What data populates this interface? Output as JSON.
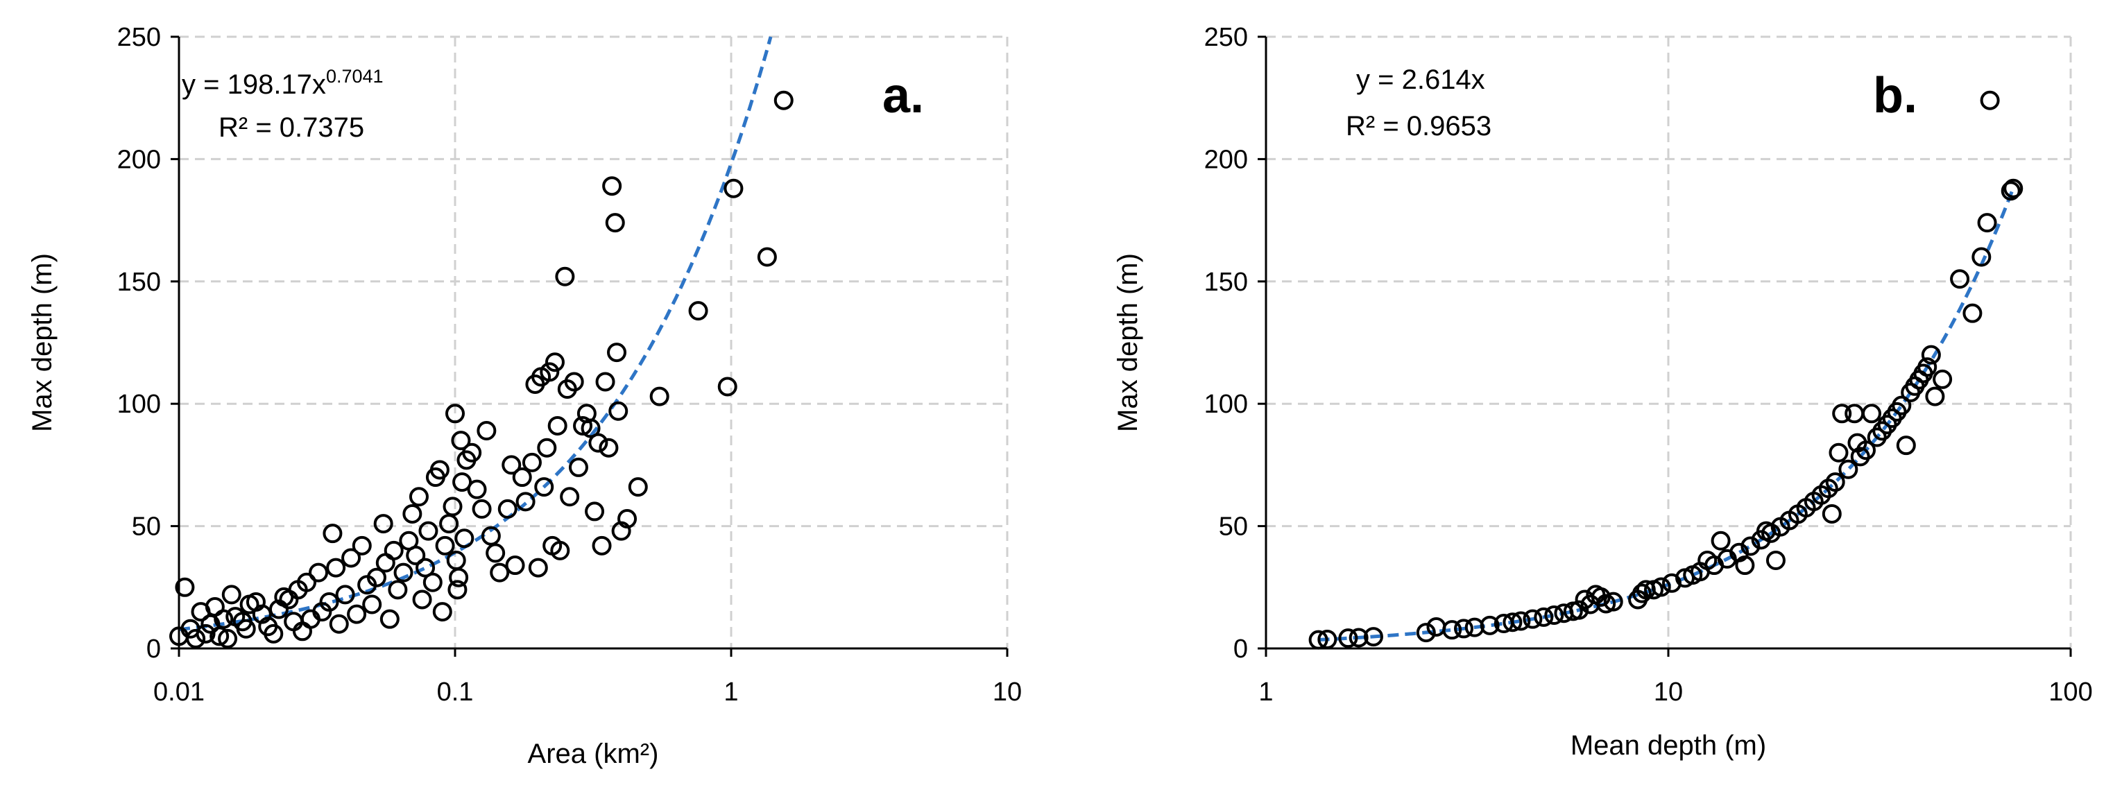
{
  "fit_color": "#2e75c6",
  "chart_data": [
    {
      "type": "scatter",
      "panel_label": "a.",
      "xscale": "log",
      "xlim": [
        0.01,
        10
      ],
      "ylim": [
        0,
        250
      ],
      "xticks": [
        0.01,
        0.1,
        1,
        10
      ],
      "yticks": [
        0,
        50,
        100,
        150,
        200,
        250
      ],
      "xtick_labels": [
        "0.01",
        "0.1",
        "1",
        "10"
      ],
      "ytick_labels": [
        "0",
        "50",
        "100",
        "150",
        "200",
        "250"
      ],
      "xlabel": "Area (km²)",
      "ylabel": "Max depth (m)",
      "grid": true,
      "equation": {
        "base": "y = 198.17x",
        "exponent": "0.7041",
        "r2": "R² = 0.7375"
      },
      "trendline": {
        "type": "power",
        "a": 198.17,
        "b": 0.7041
      },
      "points": [
        [
          0.01,
          5
        ],
        [
          0.0105,
          25
        ],
        [
          0.011,
          8
        ],
        [
          0.0115,
          4
        ],
        [
          0.012,
          15
        ],
        [
          0.0125,
          6
        ],
        [
          0.013,
          10
        ],
        [
          0.0135,
          17
        ],
        [
          0.014,
          5
        ],
        [
          0.0145,
          12
        ],
        [
          0.015,
          4
        ],
        [
          0.0155,
          22
        ],
        [
          0.016,
          13
        ],
        [
          0.017,
          11
        ],
        [
          0.0175,
          8
        ],
        [
          0.018,
          18
        ],
        [
          0.019,
          19
        ],
        [
          0.02,
          14
        ],
        [
          0.021,
          9
        ],
        [
          0.022,
          6
        ],
        [
          0.023,
          16
        ],
        [
          0.024,
          21
        ],
        [
          0.025,
          20
        ],
        [
          0.026,
          11
        ],
        [
          0.027,
          24
        ],
        [
          0.028,
          7
        ],
        [
          0.029,
          27
        ],
        [
          0.03,
          12
        ],
        [
          0.032,
          31
        ],
        [
          0.033,
          15
        ],
        [
          0.035,
          19
        ],
        [
          0.036,
          47
        ],
        [
          0.037,
          33
        ],
        [
          0.038,
          10
        ],
        [
          0.04,
          22
        ],
        [
          0.042,
          37
        ],
        [
          0.044,
          14
        ],
        [
          0.046,
          42
        ],
        [
          0.048,
          26
        ],
        [
          0.05,
          18
        ],
        [
          0.052,
          29
        ],
        [
          0.055,
          51
        ],
        [
          0.056,
          35
        ],
        [
          0.058,
          12
        ],
        [
          0.06,
          40
        ],
        [
          0.062,
          24
        ],
        [
          0.065,
          31
        ],
        [
          0.068,
          44
        ],
        [
          0.07,
          55
        ],
        [
          0.072,
          38
        ],
        [
          0.074,
          62
        ],
        [
          0.076,
          20
        ],
        [
          0.078,
          33
        ],
        [
          0.08,
          48
        ],
        [
          0.083,
          27
        ],
        [
          0.085,
          70
        ],
        [
          0.088,
          73
        ],
        [
          0.09,
          15
        ],
        [
          0.092,
          42
        ],
        [
          0.095,
          51
        ],
        [
          0.098,
          58
        ],
        [
          0.1,
          96
        ],
        [
          0.101,
          36
        ],
        [
          0.102,
          24
        ],
        [
          0.103,
          29
        ],
        [
          0.105,
          85
        ],
        [
          0.106,
          68
        ],
        [
          0.108,
          45
        ],
        [
          0.11,
          77
        ],
        [
          0.115,
          80
        ],
        [
          0.12,
          65
        ],
        [
          0.125,
          57
        ],
        [
          0.13,
          89
        ],
        [
          0.135,
          46
        ],
        [
          0.14,
          39
        ],
        [
          0.145,
          31
        ],
        [
          0.155,
          57
        ],
        [
          0.16,
          75
        ],
        [
          0.165,
          34
        ],
        [
          0.175,
          70
        ],
        [
          0.18,
          60
        ],
        [
          0.19,
          76
        ],
        [
          0.195,
          108
        ],
        [
          0.2,
          33
        ],
        [
          0.205,
          111
        ],
        [
          0.21,
          66
        ],
        [
          0.215,
          82
        ],
        [
          0.22,
          113
        ],
        [
          0.225,
          42
        ],
        [
          0.23,
          117
        ],
        [
          0.235,
          91
        ],
        [
          0.24,
          40
        ],
        [
          0.25,
          152
        ],
        [
          0.255,
          106
        ],
        [
          0.26,
          62
        ],
        [
          0.27,
          109
        ],
        [
          0.28,
          74
        ],
        [
          0.29,
          91
        ],
        [
          0.3,
          96
        ],
        [
          0.31,
          90
        ],
        [
          0.32,
          56
        ],
        [
          0.33,
          84
        ],
        [
          0.34,
          42
        ],
        [
          0.35,
          109
        ],
        [
          0.36,
          82
        ],
        [
          0.37,
          189
        ],
        [
          0.38,
          174
        ],
        [
          0.385,
          121
        ],
        [
          0.39,
          97
        ],
        [
          0.4,
          48
        ],
        [
          0.42,
          53
        ],
        [
          0.46,
          66
        ],
        [
          0.55,
          103
        ],
        [
          0.76,
          138
        ],
        [
          0.97,
          107
        ],
        [
          1.02,
          188
        ],
        [
          1.35,
          160
        ],
        [
          1.55,
          224
        ]
      ]
    },
    {
      "type": "scatter",
      "panel_label": "b.",
      "xscale": "log",
      "xlim": [
        1,
        100
      ],
      "ylim": [
        0,
        250
      ],
      "xticks": [
        1,
        10,
        100
      ],
      "yticks": [
        0,
        50,
        100,
        150,
        200,
        250
      ],
      "xtick_labels": [
        "1",
        "10",
        "100"
      ],
      "ytick_labels": [
        "0",
        "50",
        "100",
        "150",
        "200",
        "250"
      ],
      "xlabel": "Mean depth (m)",
      "ylabel": "Max depth (m)",
      "grid": true,
      "equation": {
        "base": "y = 2.614x",
        "exponent": "",
        "r2": "R² = 0.9653"
      },
      "trendline": {
        "type": "linear",
        "slope": 2.614
      },
      "points": [
        [
          1.35,
          3.5
        ],
        [
          1.42,
          3.7
        ],
        [
          1.6,
          4.2
        ],
        [
          1.7,
          4.4
        ],
        [
          1.85,
          4.8
        ],
        [
          2.5,
          6.5
        ],
        [
          2.65,
          8.8
        ],
        [
          2.9,
          7.6
        ],
        [
          3.1,
          8.1
        ],
        [
          3.3,
          8.6
        ],
        [
          3.6,
          9.4
        ],
        [
          3.9,
          10.2
        ],
        [
          4.1,
          10.7
        ],
        [
          4.3,
          11.2
        ],
        [
          4.6,
          12.0
        ],
        [
          4.9,
          12.8
        ],
        [
          5.2,
          13.6
        ],
        [
          5.5,
          14.4
        ],
        [
          5.8,
          15.2
        ],
        [
          6.0,
          15.7
        ],
        [
          6.2,
          20.0
        ],
        [
          6.4,
          18.0
        ],
        [
          6.6,
          22.0
        ],
        [
          6.8,
          21.0
        ],
        [
          7.0,
          18.3
        ],
        [
          7.3,
          19.1
        ],
        [
          8.4,
          20.0
        ],
        [
          8.6,
          22.5
        ],
        [
          8.8,
          24.0
        ],
        [
          9.2,
          24.0
        ],
        [
          9.6,
          25.1
        ],
        [
          10.2,
          26.7
        ],
        [
          11.0,
          28.8
        ],
        [
          11.5,
          30.0
        ],
        [
          12.0,
          31.4
        ],
        [
          12.5,
          36.0
        ],
        [
          13.0,
          34.0
        ],
        [
          13.5,
          44.0
        ],
        [
          14.0,
          36.6
        ],
        [
          15.0,
          39.2
        ],
        [
          15.5,
          34.0
        ],
        [
          16.0,
          41.8
        ],
        [
          17.0,
          44.4
        ],
        [
          17.5,
          48.0
        ],
        [
          18.0,
          47.1
        ],
        [
          18.5,
          36.0
        ],
        [
          19.0,
          49.7
        ],
        [
          20.0,
          52.3
        ],
        [
          21.0,
          54.9
        ],
        [
          22.0,
          57.5
        ],
        [
          23.0,
          60.1
        ],
        [
          24.0,
          62.7
        ],
        [
          25.0,
          65.4
        ],
        [
          25.5,
          55.0
        ],
        [
          26.0,
          68.0
        ],
        [
          26.5,
          80.0
        ],
        [
          27.0,
          96.0
        ],
        [
          28.0,
          73.2
        ],
        [
          29.0,
          96.0
        ],
        [
          29.5,
          84.0
        ],
        [
          30.0,
          78.4
        ],
        [
          31.0,
          81.0
        ],
        [
          32.0,
          96.0
        ],
        [
          33.0,
          86.3
        ],
        [
          34.0,
          88.9
        ],
        [
          35.0,
          91.5
        ],
        [
          36.0,
          94.1
        ],
        [
          37.0,
          96.7
        ],
        [
          38.0,
          99.3
        ],
        [
          39.0,
          83.0
        ],
        [
          40.0,
          104.6
        ],
        [
          41.0,
          107.2
        ],
        [
          42.0,
          109.8
        ],
        [
          43.0,
          112.4
        ],
        [
          44.0,
          115.0
        ],
        [
          45.0,
          120.0
        ],
        [
          46.0,
          103.0
        ],
        [
          48.0,
          110.0
        ],
        [
          53.0,
          151.0
        ],
        [
          57.0,
          137.0
        ],
        [
          60.0,
          160.0
        ],
        [
          62.0,
          174.0
        ],
        [
          63.0,
          224.0
        ],
        [
          71.0,
          187.0
        ],
        [
          72.0,
          188.0
        ]
      ]
    }
  ]
}
